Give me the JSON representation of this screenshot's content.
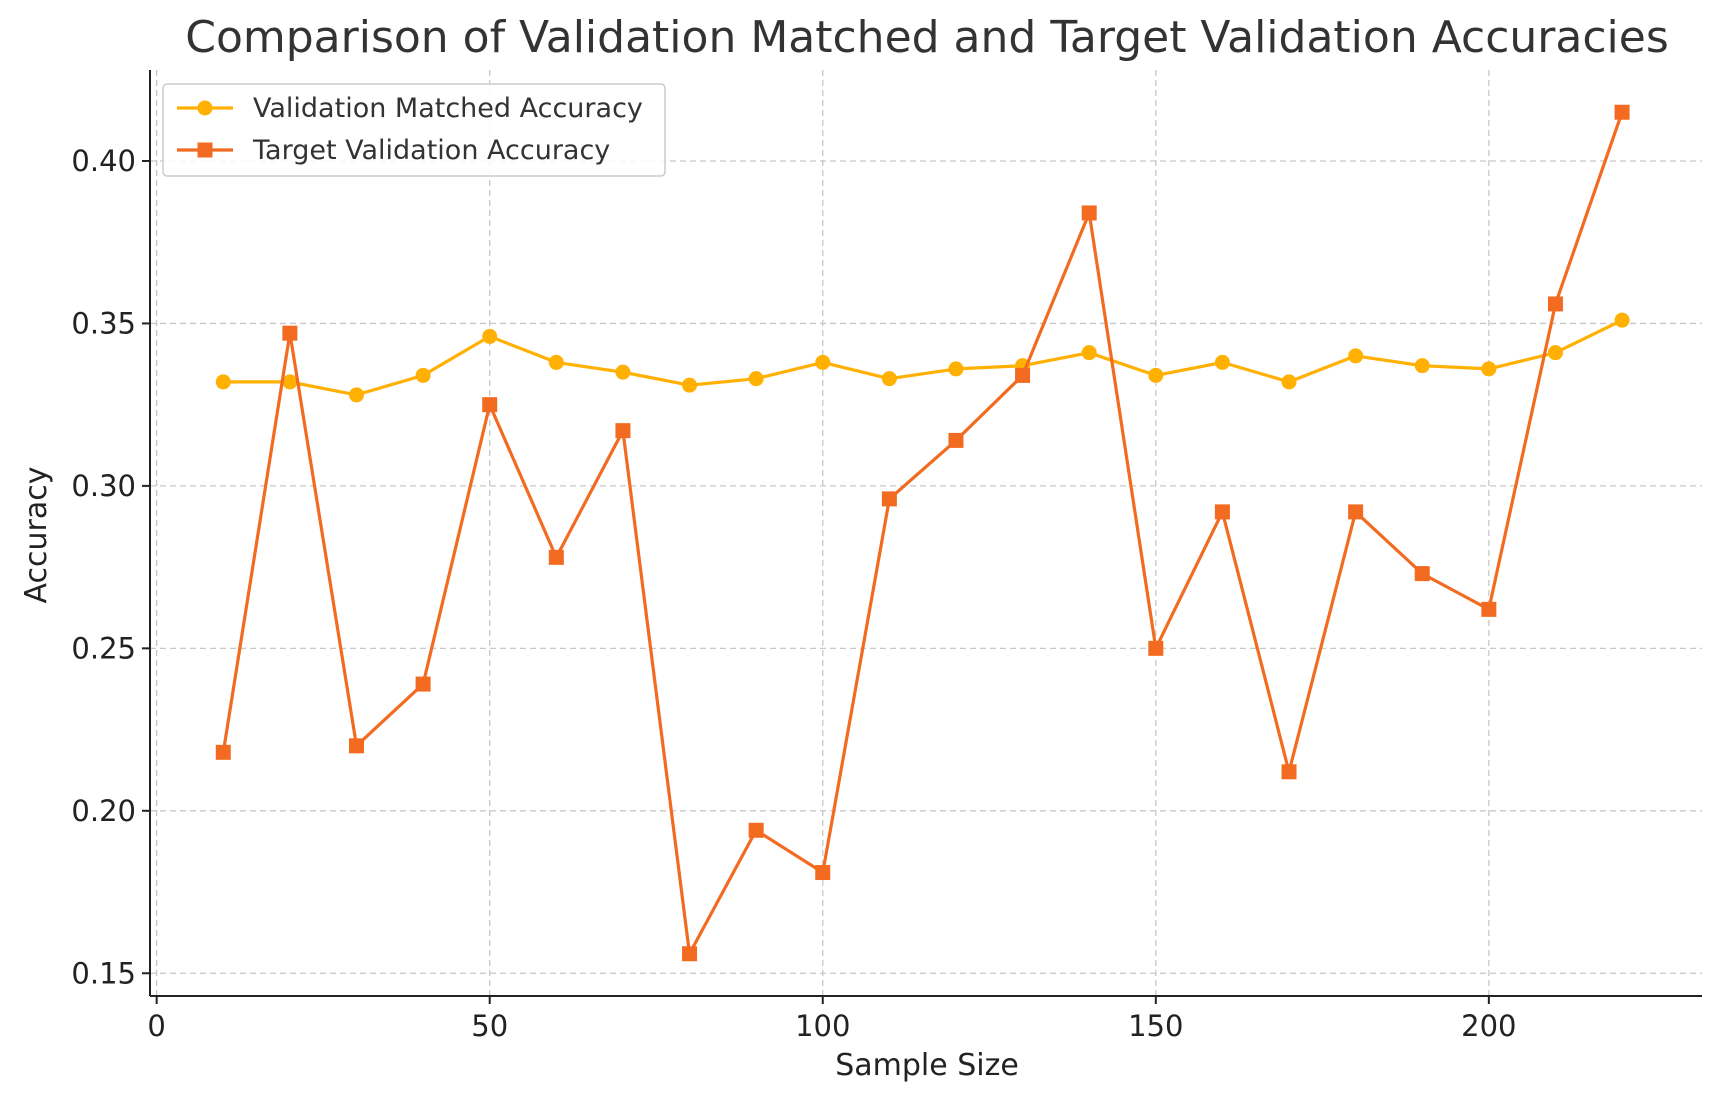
{
  "chart_data": {
    "type": "line",
    "title": "Comparison of Validation Matched and Target Validation Accuracies",
    "xlabel": "Sample Size",
    "ylabel": "Accuracy",
    "xlim": [
      -1,
      232
    ],
    "ylim": [
      0.143,
      0.428
    ],
    "xticks": [
      0,
      50,
      100,
      150,
      200
    ],
    "xtick_labels": [
      "0",
      "50",
      "100",
      "150",
      "200"
    ],
    "yticks": [
      0.15,
      0.2,
      0.25,
      0.3,
      0.35,
      0.4
    ],
    "ytick_labels": [
      "0.15",
      "0.20",
      "0.25",
      "0.30",
      "0.35",
      "0.40"
    ],
    "grid": true,
    "legend_position": "top-left",
    "x": [
      10,
      20,
      30,
      40,
      50,
      60,
      70,
      80,
      90,
      100,
      110,
      120,
      130,
      140,
      150,
      160,
      170,
      180,
      190,
      200,
      210,
      220
    ],
    "series": [
      {
        "name": "Validation Matched Accuracy",
        "marker": "circle",
        "color": "#FFB000",
        "values": [
          0.332,
          0.332,
          0.328,
          0.334,
          0.346,
          0.338,
          0.335,
          0.331,
          0.333,
          0.338,
          0.333,
          0.336,
          0.337,
          0.341,
          0.334,
          0.338,
          0.332,
          0.34,
          0.337,
          0.336,
          0.341,
          0.351
        ]
      },
      {
        "name": "Target Validation Accuracy",
        "marker": "square",
        "color": "#F26B21",
        "values": [
          0.218,
          0.347,
          0.22,
          0.239,
          0.325,
          0.278,
          0.317,
          0.156,
          0.194,
          0.181,
          0.296,
          0.314,
          0.334,
          0.384,
          0.25,
          0.292,
          0.212,
          0.292,
          0.273,
          0.262,
          0.356,
          0.415
        ]
      }
    ]
  }
}
